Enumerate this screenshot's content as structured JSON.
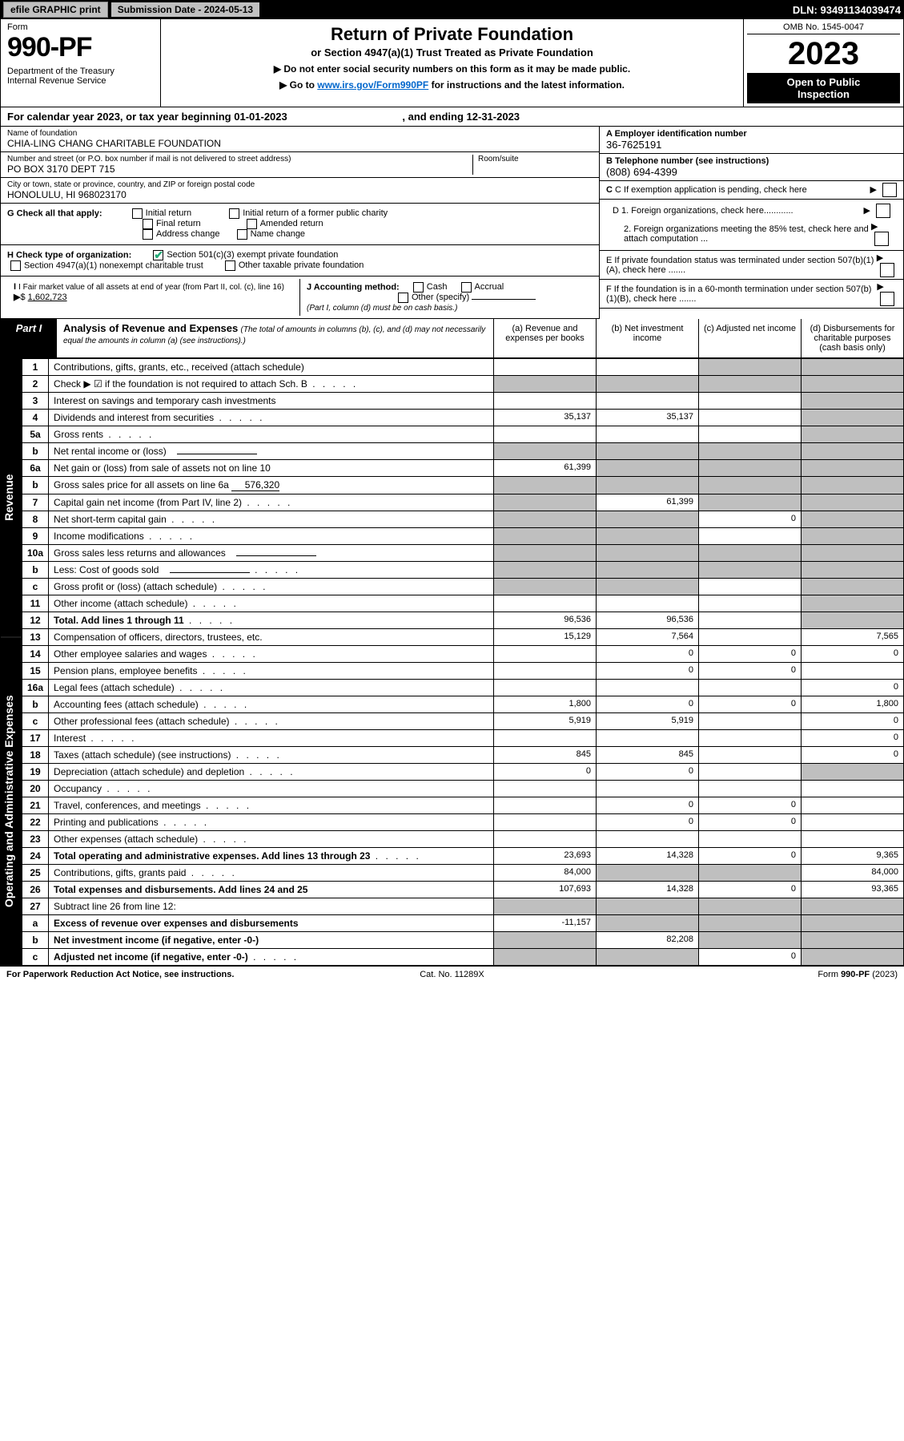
{
  "topbar": {
    "efile": "efile GRAPHIC print",
    "sub_label": "Submission Date - 2024-05-13",
    "dln": "DLN: 93491134039474"
  },
  "header": {
    "form_word": "Form",
    "form_number": "990-PF",
    "dept": "Department of the Treasury\nInternal Revenue Service",
    "title": "Return of Private Foundation",
    "subtitle": "or Section 4947(a)(1) Trust Treated as Private Foundation",
    "note1": "▶ Do not enter social security numbers on this form as it may be made public.",
    "note2_pre": "▶ Go to ",
    "note2_link": "www.irs.gov/Form990PF",
    "note2_post": " for instructions and the latest information.",
    "omb": "OMB No. 1545-0047",
    "year": "2023",
    "open": "Open to Public\nInspection"
  },
  "cal": {
    "text_pre": "For calendar year 2023, or tax year beginning ",
    "begin": "01-01-2023",
    "mid": " , and ending ",
    "end": "12-31-2023"
  },
  "id": {
    "name_lbl": "Name of foundation",
    "name": "CHIA-LING CHANG CHARITABLE FOUNDATION",
    "addr_lbl": "Number and street (or P.O. box number if mail is not delivered to street address)",
    "addr": "PO BOX 3170 DEPT 715",
    "room_lbl": "Room/suite",
    "city_lbl": "City or town, state or province, country, and ZIP or foreign postal code",
    "city": "HONOLULU, HI  968023170",
    "a_lbl": "A Employer identification number",
    "a_val": "36-7625191",
    "b_lbl": "B Telephone number (see instructions)",
    "b_val": "(808) 694-4399",
    "c_lbl": "C If exemption application is pending, check here",
    "d1": "D 1. Foreign organizations, check here............",
    "d2": "2. Foreign organizations meeting the 85% test, check here and attach computation ...",
    "e": "E  If private foundation status was terminated under section 507(b)(1)(A), check here .......",
    "f": "F  If the foundation is in a 60-month termination under section 507(b)(1)(B), check here .......",
    "g_lbl": "G Check all that apply:",
    "g_opts": [
      "Initial return",
      "Final return",
      "Address change",
      "Initial return of a former public charity",
      "Amended return",
      "Name change"
    ],
    "h_lbl": "H Check type of organization:",
    "h_opts": [
      "Section 501(c)(3) exempt private foundation",
      "Section 4947(a)(1) nonexempt charitable trust",
      "Other taxable private foundation"
    ],
    "i_lbl": "I Fair market value of all assets at end of year (from Part II, col. (c), line 16)",
    "i_val": "1,602,723",
    "j_lbl": "J Accounting method:",
    "j_opts": [
      "Cash",
      "Accrual",
      "Other (specify)"
    ],
    "j_note": "(Part I, column (d) must be on cash basis.)"
  },
  "part1": {
    "tag": "Part I",
    "title": "Analysis of Revenue and Expenses",
    "note": "(The total of amounts in columns (b), (c), and (d) may not necessarily equal the amounts in column (a) (see instructions).)",
    "cols": {
      "a": "(a)  Revenue and expenses per books",
      "b": "(b)  Net investment income",
      "c": "(c)  Adjusted net income",
      "d": "(d)  Disbursements for charitable purposes (cash basis only)"
    },
    "side_rev": "Revenue",
    "side_exp": "Operating and Administrative Expenses"
  },
  "rows": [
    {
      "no": "1",
      "desc": "Contributions, gifts, grants, etc., received (attach schedule)",
      "a": "",
      "b": "",
      "c": "",
      "d": "",
      "sc": true,
      "sd": true
    },
    {
      "no": "2",
      "desc": "Check ▶ ☑ if the foundation is not required to attach Sch. B",
      "a": "",
      "b": "",
      "c": "",
      "d": "",
      "sb": true,
      "sc": true,
      "sd": true,
      "sa": true,
      "dots": true
    },
    {
      "no": "3",
      "desc": "Interest on savings and temporary cash investments",
      "a": "",
      "b": "",
      "c": "",
      "d": "",
      "sd": true
    },
    {
      "no": "4",
      "desc": "Dividends and interest from securities",
      "a": "35,137",
      "b": "35,137",
      "c": "",
      "d": "",
      "sd": true,
      "dots": true
    },
    {
      "no": "5a",
      "desc": "Gross rents",
      "a": "",
      "b": "",
      "c": "",
      "d": "",
      "sd": true,
      "dots": true
    },
    {
      "no": "b",
      "desc": "Net rental income or (loss)",
      "a": "",
      "b": "",
      "c": "",
      "d": "",
      "sa": true,
      "sb": true,
      "sc": true,
      "sd": true,
      "inline_box": true
    },
    {
      "no": "6a",
      "desc": "Net gain or (loss) from sale of assets not on line 10",
      "a": "61,399",
      "b": "",
      "c": "",
      "d": "",
      "sb": true,
      "sc": true,
      "sd": true
    },
    {
      "no": "b",
      "desc": "Gross sales price for all assets on line 6a",
      "a": "",
      "b": "",
      "c": "",
      "d": "",
      "sa": true,
      "sb": true,
      "sc": true,
      "sd": true,
      "inline_val": "576,320"
    },
    {
      "no": "7",
      "desc": "Capital gain net income (from Part IV, line 2)",
      "a": "",
      "b": "61,399",
      "c": "",
      "d": "",
      "sa": true,
      "sc": true,
      "sd": true,
      "dots": true
    },
    {
      "no": "8",
      "desc": "Net short-term capital gain",
      "a": "",
      "b": "",
      "c": "0",
      "d": "",
      "sa": true,
      "sb": true,
      "sd": true,
      "dots": true
    },
    {
      "no": "9",
      "desc": "Income modifications",
      "a": "",
      "b": "",
      "c": "",
      "d": "",
      "sa": true,
      "sb": true,
      "sd": true,
      "dots": true
    },
    {
      "no": "10a",
      "desc": "Gross sales less returns and allowances",
      "a": "",
      "b": "",
      "c": "",
      "d": "",
      "sa": true,
      "sb": true,
      "sc": true,
      "sd": true,
      "inline_box": true
    },
    {
      "no": "b",
      "desc": "Less: Cost of goods sold",
      "a": "",
      "b": "",
      "c": "",
      "d": "",
      "sa": true,
      "sb": true,
      "sc": true,
      "sd": true,
      "inline_box": true,
      "dots": true
    },
    {
      "no": "c",
      "desc": "Gross profit or (loss) (attach schedule)",
      "a": "",
      "b": "",
      "c": "",
      "d": "",
      "sa": true,
      "sb": true,
      "sd": true,
      "dots": true
    },
    {
      "no": "11",
      "desc": "Other income (attach schedule)",
      "a": "",
      "b": "",
      "c": "",
      "d": "",
      "sd": true,
      "dots": true
    },
    {
      "no": "12",
      "desc": "Total. Add lines 1 through 11",
      "a": "96,536",
      "b": "96,536",
      "c": "",
      "d": "",
      "sd": true,
      "bold": true,
      "dots": true
    },
    {
      "no": "13",
      "desc": "Compensation of officers, directors, trustees, etc.",
      "a": "15,129",
      "b": "7,564",
      "c": "",
      "d": "7,565"
    },
    {
      "no": "14",
      "desc": "Other employee salaries and wages",
      "a": "",
      "b": "0",
      "c": "0",
      "d": "0",
      "dots": true
    },
    {
      "no": "15",
      "desc": "Pension plans, employee benefits",
      "a": "",
      "b": "0",
      "c": "0",
      "d": "",
      "dots": true
    },
    {
      "no": "16a",
      "desc": "Legal fees (attach schedule)",
      "a": "",
      "b": "",
      "c": "",
      "d": "0",
      "dots": true
    },
    {
      "no": "b",
      "desc": "Accounting fees (attach schedule)",
      "a": "1,800",
      "b": "0",
      "c": "0",
      "d": "1,800",
      "dots": true
    },
    {
      "no": "c",
      "desc": "Other professional fees (attach schedule)",
      "a": "5,919",
      "b": "5,919",
      "c": "",
      "d": "0",
      "dots": true
    },
    {
      "no": "17",
      "desc": "Interest",
      "a": "",
      "b": "",
      "c": "",
      "d": "0",
      "dots": true
    },
    {
      "no": "18",
      "desc": "Taxes (attach schedule) (see instructions)",
      "a": "845",
      "b": "845",
      "c": "",
      "d": "0",
      "dots": true
    },
    {
      "no": "19",
      "desc": "Depreciation (attach schedule) and depletion",
      "a": "0",
      "b": "0",
      "c": "",
      "d": "",
      "sd": true,
      "dots": true
    },
    {
      "no": "20",
      "desc": "Occupancy",
      "a": "",
      "b": "",
      "c": "",
      "d": "",
      "dots": true
    },
    {
      "no": "21",
      "desc": "Travel, conferences, and meetings",
      "a": "",
      "b": "0",
      "c": "0",
      "d": "",
      "dots": true
    },
    {
      "no": "22",
      "desc": "Printing and publications",
      "a": "",
      "b": "0",
      "c": "0",
      "d": "",
      "dots": true
    },
    {
      "no": "23",
      "desc": "Other expenses (attach schedule)",
      "a": "",
      "b": "",
      "c": "",
      "d": "",
      "dots": true
    },
    {
      "no": "24",
      "desc": "Total operating and administrative expenses. Add lines 13 through 23",
      "a": "23,693",
      "b": "14,328",
      "c": "0",
      "d": "9,365",
      "bold": true,
      "dots": true
    },
    {
      "no": "25",
      "desc": "Contributions, gifts, grants paid",
      "a": "84,000",
      "b": "",
      "c": "",
      "d": "84,000",
      "sb": true,
      "sc": true,
      "dots": true
    },
    {
      "no": "26",
      "desc": "Total expenses and disbursements. Add lines 24 and 25",
      "a": "107,693",
      "b": "14,328",
      "c": "0",
      "d": "93,365",
      "bold": true
    },
    {
      "no": "27",
      "desc": "Subtract line 26 from line 12:",
      "a": "",
      "b": "",
      "c": "",
      "d": "",
      "sa": true,
      "sb": true,
      "sc": true,
      "sd": true
    },
    {
      "no": "a",
      "desc": "Excess of revenue over expenses and disbursements",
      "a": "-11,157",
      "b": "",
      "c": "",
      "d": "",
      "sb": true,
      "sc": true,
      "sd": true,
      "bold": true
    },
    {
      "no": "b",
      "desc": "Net investment income (if negative, enter -0-)",
      "a": "",
      "b": "82,208",
      "c": "",
      "d": "",
      "sa": true,
      "sc": true,
      "sd": true,
      "bold": true
    },
    {
      "no": "c",
      "desc": "Adjusted net income (if negative, enter -0-)",
      "a": "",
      "b": "",
      "c": "0",
      "d": "",
      "sa": true,
      "sb": true,
      "sd": true,
      "bold": true,
      "dots": true
    }
  ],
  "foot": {
    "left": "For Paperwork Reduction Act Notice, see instructions.",
    "mid": "Cat. No. 11289X",
    "right": "Form 990-PF (2023)"
  },
  "colors": {
    "shade": "#bfbfbf",
    "link": "#0066cc",
    "check": "#22aa77"
  }
}
